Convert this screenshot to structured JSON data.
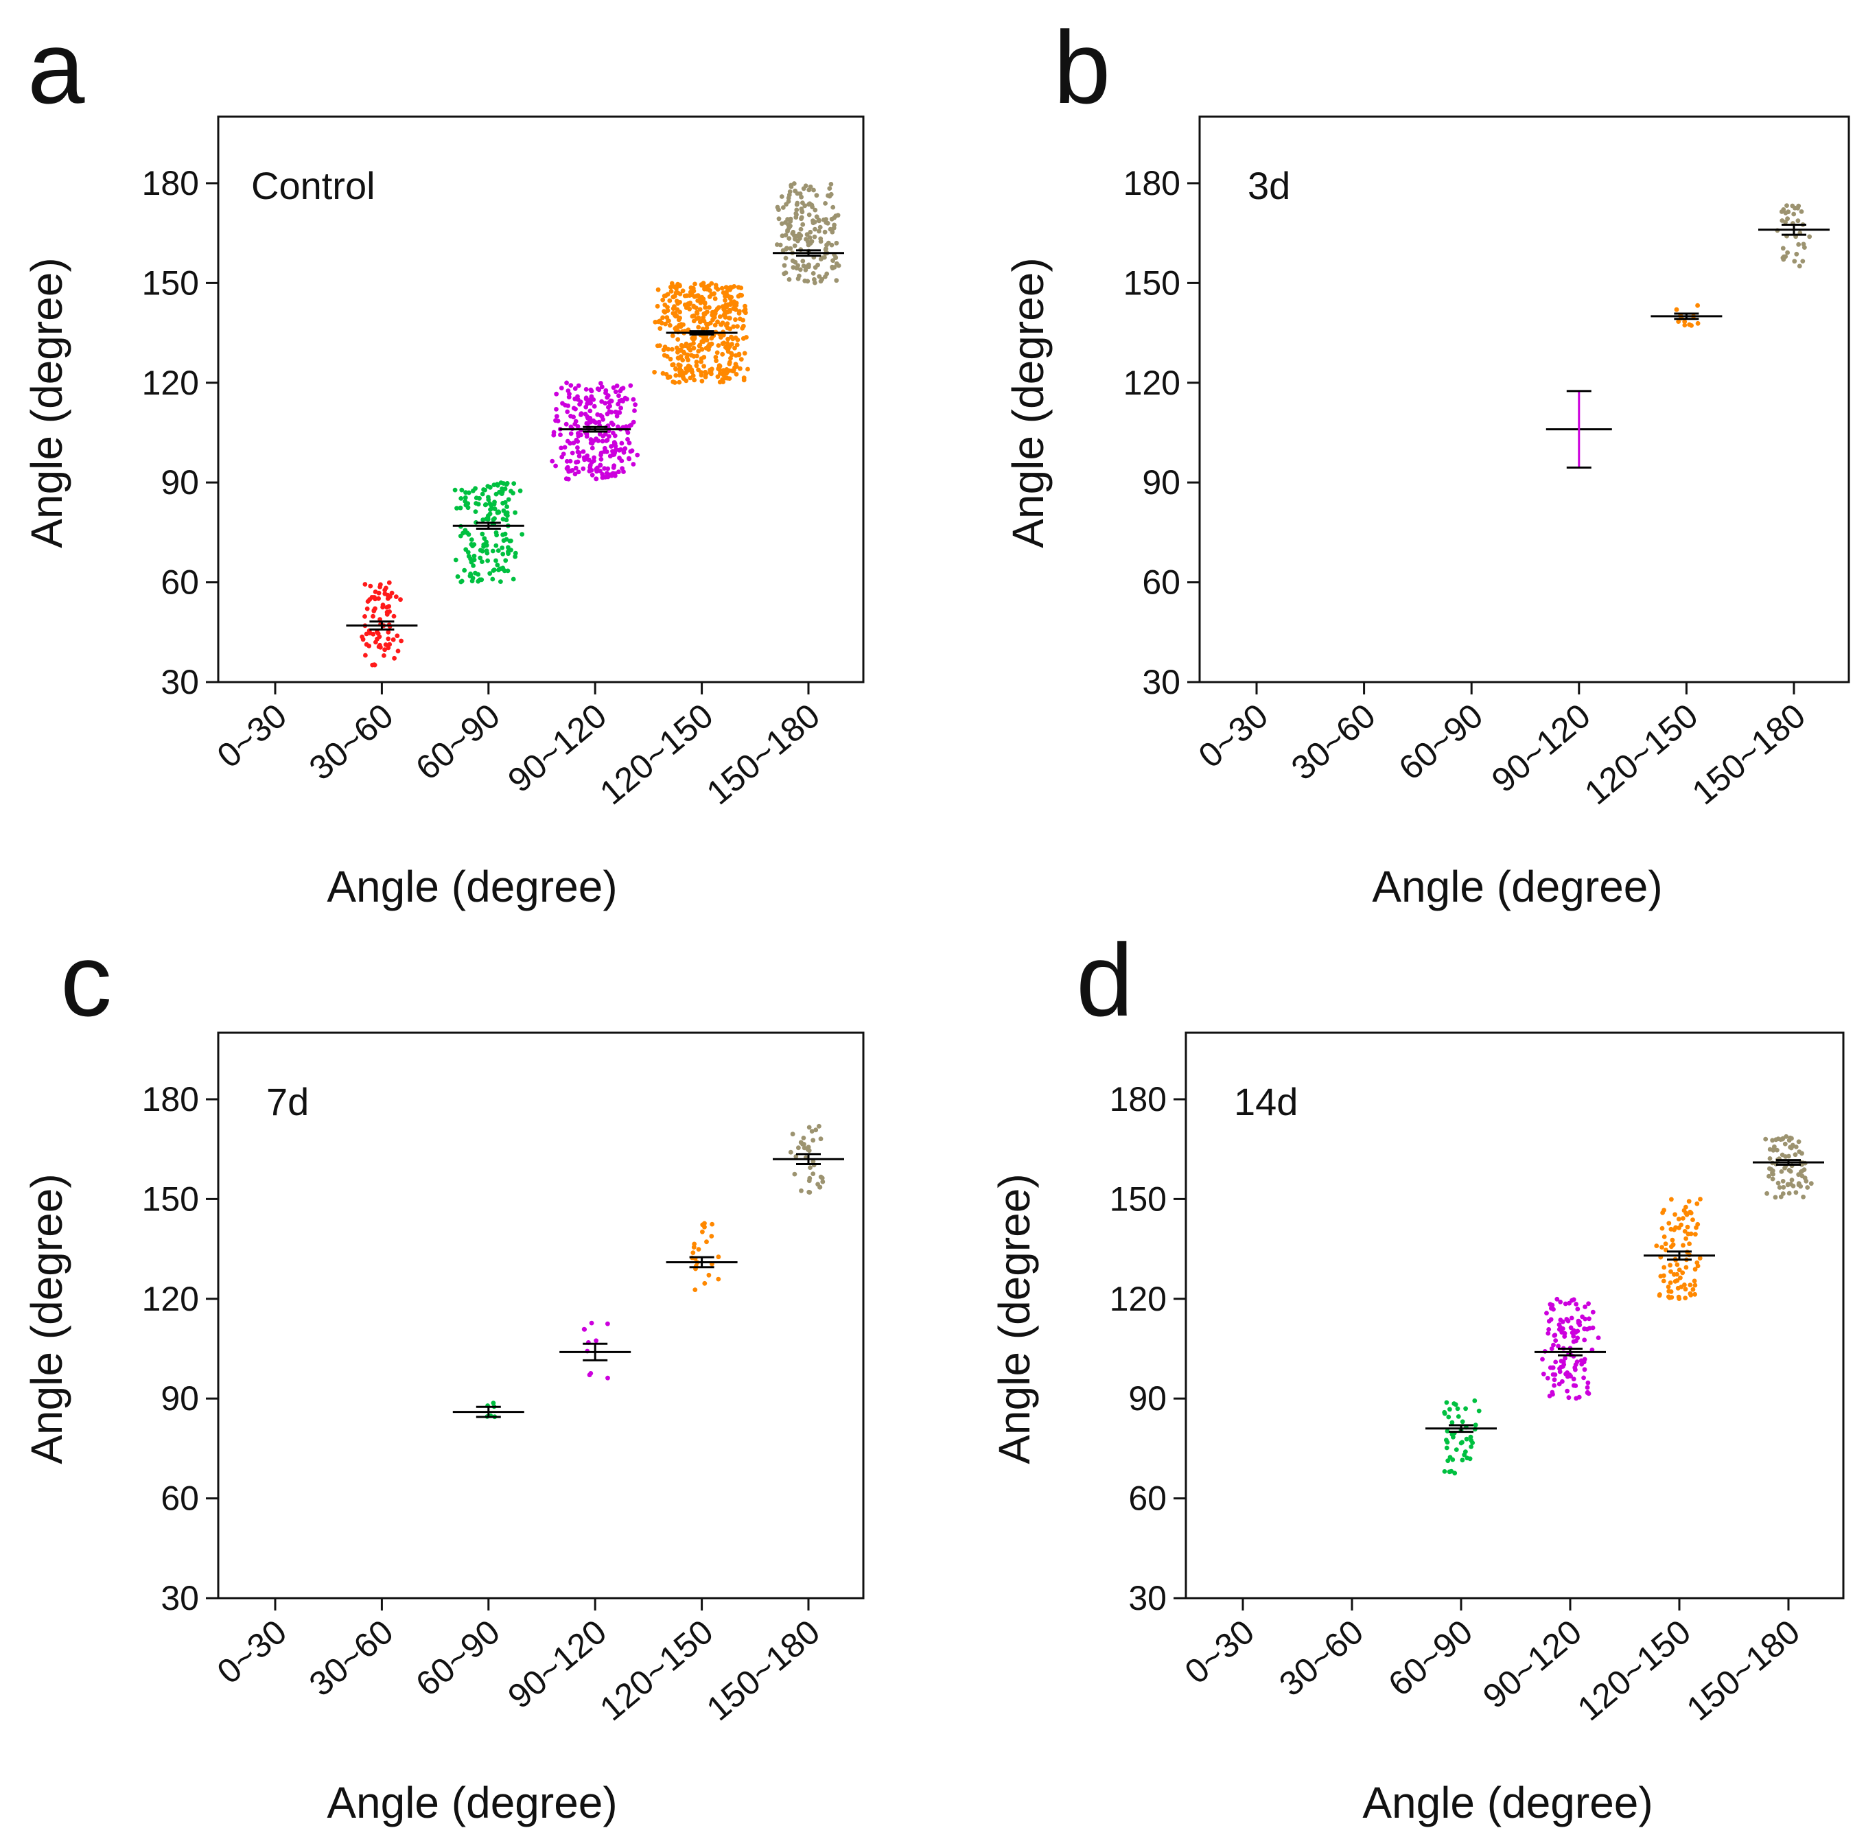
{
  "figure": {
    "panels": [
      "a",
      "b",
      "c",
      "d"
    ]
  },
  "colors": {
    "0~30": "#888888",
    "30~60": "#ff1a1a",
    "60~90": "#00c040",
    "90~120": "#cc00dd",
    "120~150": "#ff8800",
    "150~180": "#9c9370",
    "mean_line": "#000000",
    "axis": "#111111"
  },
  "chart_data": [
    {
      "panel": "a",
      "type": "scatter",
      "subtype": "dot plot with mean ± SEM",
      "group_label": "Control",
      "xlabel": "Angle (degree)",
      "ylabel": "Angle (degree)",
      "categories": [
        "0~30",
        "30~60",
        "60~90",
        "90~120",
        "120~150",
        "150~180"
      ],
      "ylim": [
        30,
        200
      ],
      "yticks": [
        30,
        60,
        90,
        120,
        150,
        180
      ],
      "series": [
        {
          "name": "30~60",
          "mean": 47,
          "sem": 1.2,
          "min": 35,
          "max": 60,
          "n": 75
        },
        {
          "name": "60~90",
          "mean": 77,
          "sem": 0.9,
          "min": 60,
          "max": 90,
          "n": 160
        },
        {
          "name": "90~120",
          "mean": 106,
          "sem": 0.7,
          "min": 91,
          "max": 120,
          "n": 260
        },
        {
          "name": "120~150",
          "mean": 135,
          "sem": 0.5,
          "min": 120,
          "max": 150,
          "n": 420
        },
        {
          "name": "150~180",
          "mean": 159,
          "sem": 0.8,
          "min": 150,
          "max": 180,
          "n": 170
        }
      ]
    },
    {
      "panel": "b",
      "type": "scatter",
      "subtype": "dot plot with mean ± SEM",
      "group_label": "3d",
      "xlabel": "Angle (degree)",
      "ylabel": "Angle (degree)",
      "categories": [
        "0~30",
        "30~60",
        "60~90",
        "90~120",
        "120~150",
        "150~180"
      ],
      "ylim": [
        30,
        200
      ],
      "yticks": [
        30,
        60,
        90,
        120,
        150,
        180
      ],
      "series": [
        {
          "name": "90~120",
          "mean": 106,
          "sem": 11.5,
          "min": 106,
          "max": 106,
          "n": 0
        },
        {
          "name": "120~150",
          "mean": 140,
          "sem": 0.8,
          "min": 137,
          "max": 144,
          "n": 12
        },
        {
          "name": "150~180",
          "mean": 166,
          "sem": 1.5,
          "min": 155,
          "max": 174,
          "n": 35
        }
      ]
    },
    {
      "panel": "c",
      "type": "scatter",
      "subtype": "dot plot with mean ± SEM",
      "group_label": "7d",
      "xlabel": "Angle (degree)",
      "ylabel": "Angle (degree)",
      "categories": [
        "0~30",
        "30~60",
        "60~90",
        "90~120",
        "120~150",
        "150~180"
      ],
      "ylim": [
        30,
        200
      ],
      "yticks": [
        30,
        60,
        90,
        120,
        150,
        180
      ],
      "series": [
        {
          "name": "60~90",
          "mean": 86,
          "sem": 1.5,
          "min": 84,
          "max": 89,
          "n": 6
        },
        {
          "name": "90~120",
          "mean": 104,
          "sem": 2.5,
          "min": 94,
          "max": 117,
          "n": 10
        },
        {
          "name": "120~150",
          "mean": 131,
          "sem": 1.5,
          "min": 121,
          "max": 143,
          "n": 22
        },
        {
          "name": "150~180",
          "mean": 162,
          "sem": 1.5,
          "min": 151,
          "max": 172,
          "n": 35
        }
      ]
    },
    {
      "panel": "d",
      "type": "scatter",
      "subtype": "dot plot with mean ± SEM",
      "group_label": "14d",
      "xlabel": "Angle (degree)",
      "ylabel": "Angle (degree)",
      "categories": [
        "0~30",
        "30~60",
        "60~90",
        "90~120",
        "120~150",
        "150~180"
      ],
      "ylim": [
        30,
        200
      ],
      "yticks": [
        30,
        60,
        90,
        120,
        150,
        180
      ],
      "series": [
        {
          "name": "60~90",
          "mean": 81,
          "sem": 1.0,
          "min": 67,
          "max": 90,
          "n": 45
        },
        {
          "name": "90~120",
          "mean": 104,
          "sem": 1.0,
          "min": 90,
          "max": 120,
          "n": 120
        },
        {
          "name": "120~150",
          "mean": 133,
          "sem": 1.2,
          "min": 120,
          "max": 150,
          "n": 90
        },
        {
          "name": "150~180",
          "mean": 161,
          "sem": 0.7,
          "min": 150,
          "max": 169,
          "n": 80
        }
      ]
    }
  ]
}
